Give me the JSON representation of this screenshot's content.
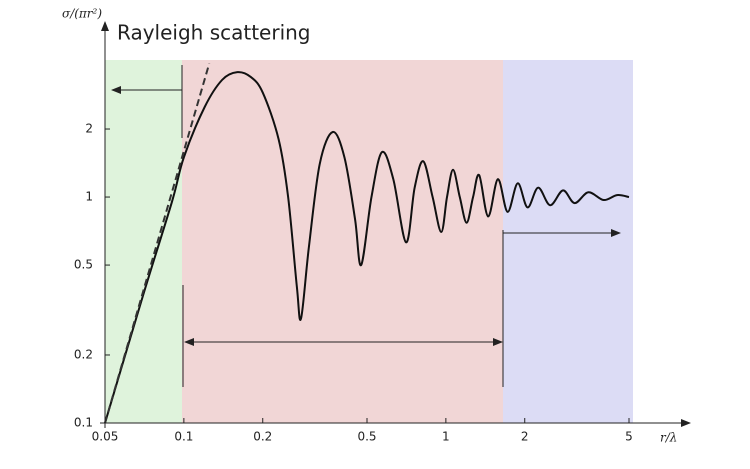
{
  "chart_data": {
    "type": "line",
    "log_x": true,
    "log_y": true,
    "annotation": "Rayleigh scattering",
    "y_label": "σ/(πr²)",
    "x_label": "r/λ",
    "xlim": [
      0.05,
      5
    ],
    "xticks": [
      0.05,
      0.1,
      0.2,
      0.5,
      1,
      2,
      5
    ],
    "ylim": [
      0.1,
      4
    ],
    "yticks": [
      0.1,
      0.2,
      0.5,
      1,
      2
    ],
    "series": [
      {
        "color": "#111111",
        "dashed": false,
        "x": [
          0.05,
          0.07,
          0.09,
          0.1,
          0.12,
          0.14,
          0.16,
          0.18,
          0.2,
          0.23,
          0.25,
          0.27,
          0.28,
          0.3,
          0.33,
          0.37,
          0.41,
          0.45,
          0.475,
          0.52,
          0.57,
          0.63,
          0.705,
          0.76,
          0.82,
          0.89,
          0.96,
          1.01,
          1.065,
          1.13,
          1.2,
          1.27,
          1.34,
          1.45,
          1.58,
          1.72,
          1.88,
          2.05,
          2.25,
          2.5,
          2.8,
          3.1,
          3.5,
          4.0,
          4.5,
          5
        ],
        "values": [
          0.1,
          0.37,
          0.95,
          1.5,
          2.5,
          3.3,
          3.57,
          3.4,
          2.9,
          1.8,
          1.0,
          0.4,
          0.29,
          0.6,
          1.4,
          1.94,
          1.5,
          0.8,
          0.5,
          1.0,
          1.58,
          1.2,
          0.63,
          1.1,
          1.44,
          1.0,
          0.7,
          1.0,
          1.32,
          1.0,
          0.77,
          1.0,
          1.25,
          0.82,
          1.2,
          0.86,
          1.15,
          0.9,
          1.1,
          0.92,
          1.07,
          0.94,
          1.05,
          0.97,
          1.02,
          1.0
        ]
      },
      {
        "color": "#333333",
        "dashed": true,
        "x": [
          0.05,
          0.125
        ],
        "values": [
          0.1,
          3.9
        ]
      }
    ]
  }
}
